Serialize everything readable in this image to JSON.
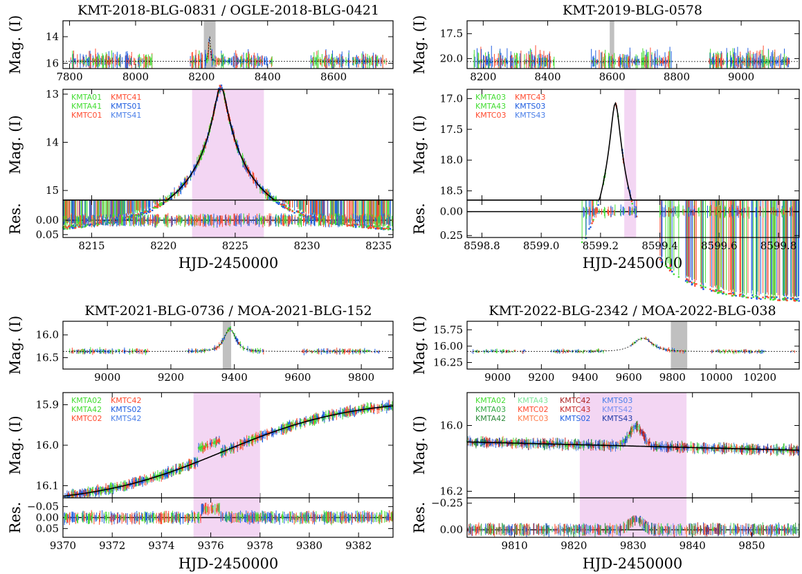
{
  "colors": {
    "KMTA": "#44dd33",
    "KMTC": "#ff4a2e",
    "KMTS": "#1f5de0",
    "KMTA_alt": "#33aa44",
    "KMTC_alt": "#aa2222",
    "KMTS_alt": "#4a7fe8",
    "anomaly_band": "#f3d6f3",
    "peak_band": "#c0c0c0",
    "model": "#000000"
  },
  "chart_data": [
    {
      "type": "line",
      "title": "KMT-2018-BLG-0831 / OGLE-2018-BLG-0421",
      "xlabel": "HJD-2450000",
      "top": {
        "ylabel": "Mag. (I)",
        "xlim": [
          7780,
          8780
        ],
        "ylim": [
          16.4,
          12.8
        ],
        "xticks": [
          7800,
          8000,
          8200,
          8400,
          8600
        ],
        "yticks": [
          14,
          16
        ],
        "baseline": 15.85,
        "peak_t": 8224,
        "peak_mag": 12.87,
        "tE": 6.0
      },
      "zoom": {
        "xlim": [
          8213,
          8236
        ],
        "ylim": [
          15.2,
          12.9
        ],
        "yticks": [
          13,
          14,
          15
        ],
        "anomaly": [
          8222,
          8227
        ]
      },
      "res": {
        "ylabel": "Res.",
        "xlim": [
          8213,
          8236
        ],
        "ylim": [
          0.06,
          -0.07
        ],
        "yticks": [
          0.0,
          0.05
        ],
        "xticks": [
          8215,
          8220,
          8225,
          8230,
          8235
        ]
      },
      "legend": [
        "KMTA01",
        "KMTC41",
        "KMTA41",
        "KMTS01",
        "KMTC01",
        "KMTS41"
      ]
    },
    {
      "type": "line",
      "title": "KMT-2019-BLG-0578",
      "xlabel": "HJD-2450000",
      "top": {
        "ylabel": "Mag. (I)",
        "xlim": [
          8150,
          9180
        ],
        "ylim": [
          21.0,
          16.2
        ],
        "xticks": [
          8200,
          8400,
          8600,
          8800,
          9000
        ],
        "yticks": [
          17.5,
          20.0
        ],
        "baseline": 20.3,
        "peak_t": 8599.25,
        "peak_mag": 17.05,
        "tE": 0.25
      },
      "zoom": {
        "xlim": [
          8598.75,
          8599.87
        ],
        "ylim": [
          18.65,
          16.85
        ],
        "yticks": [
          17.0,
          17.5,
          18.0,
          18.5
        ],
        "anomaly": [
          8599.28,
          8599.32
        ]
      },
      "res": {
        "ylabel": "Res.",
        "xlim": [
          8598.75,
          8599.87
        ],
        "ylim": [
          0.27,
          -0.12
        ],
        "yticks": [
          0.0,
          0.25
        ],
        "xticks": [
          8598.8,
          8599.0,
          8599.2,
          8599.4,
          8599.6,
          8599.8
        ]
      },
      "legend": [
        "KMTA03",
        "KMTC43",
        "KMTA43",
        "KMTS03",
        "KMTC03",
        "KMTS43"
      ]
    },
    {
      "type": "line",
      "title": "KMT-2021-BLG-0736 / MOA-2021-BLG-152",
      "xlabel": "HJD-2450000",
      "top": {
        "ylabel": "Mag. (I)",
        "xlim": [
          8860,
          9900
        ],
        "ylim": [
          16.75,
          15.7
        ],
        "xticks": [
          9000,
          9200,
          9400,
          9600,
          9800
        ],
        "yticks": [
          16.0,
          16.5
        ],
        "baseline": 16.36,
        "peak_t": 9386,
        "peak_mag": 15.87,
        "tE": 25
      },
      "zoom": {
        "xlim": [
          9370,
          9383.4
        ],
        "ylim": [
          16.13,
          15.87
        ],
        "yticks": [
          15.9,
          16.0,
          16.1
        ],
        "anomaly": [
          9375.3,
          9378
        ]
      },
      "res": {
        "ylabel": "Res.",
        "xlim": [
          9370,
          9383.4
        ],
        "ylim": [
          0.09,
          -0.09
        ],
        "yticks": [
          -0.05,
          0.0,
          0.05
        ],
        "xticks": [
          9370,
          9372,
          9374,
          9376,
          9378,
          9380,
          9382
        ]
      },
      "legend": [
        "KMTA02",
        "KMTC42",
        "KMTA42",
        "KMTS02",
        "KMTC02",
        "KMTS42"
      ]
    },
    {
      "type": "line",
      "title": "KMT-2022-BLG-2342 / MOA-2022-BLG-038",
      "xlabel": "HJD-2450000",
      "top": {
        "ylabel": "Mag. (I)",
        "xlim": [
          8860,
          10380
        ],
        "ylim": [
          16.35,
          15.62
        ],
        "xticks": [
          9000,
          9200,
          9400,
          9600,
          9800,
          10000,
          10200
        ],
        "yticks": [
          15.75,
          16.0,
          16.25
        ],
        "baseline": 16.08,
        "peak_t": 9665,
        "peak_mag": 15.86,
        "tE": 45
      },
      "zoom": {
        "xlim": [
          9802,
          9858
        ],
        "ylim": [
          16.22,
          15.9
        ],
        "yticks": [
          16.0,
          16.2
        ],
        "anomaly": [
          9821,
          9839
        ]
      },
      "res": {
        "ylabel": "Res.",
        "xlim": [
          9802,
          9858
        ],
        "ylim": [
          0.07,
          -0.3
        ],
        "yticks": [
          -0.25,
          0.0
        ],
        "xticks": [
          9810,
          9820,
          9830,
          9840,
          9850
        ]
      },
      "legend": [
        "KMTA02",
        "KMTA43",
        "KMTC42",
        "KMTS03",
        "KMTA03",
        "KMTC02",
        "KMTC43",
        "KMTS42",
        "KMTA42",
        "KMTC03",
        "KMTS02",
        "KMTS43"
      ]
    }
  ]
}
